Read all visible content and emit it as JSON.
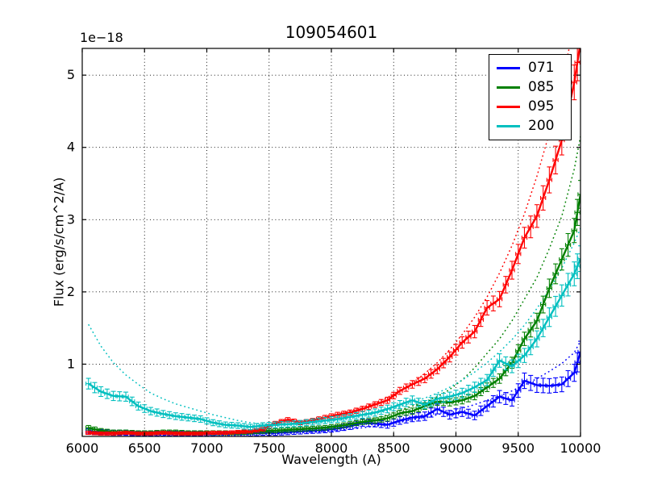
{
  "figure": {
    "title": "109054601",
    "offset_text": "1e−18"
  },
  "axes": {
    "xlabel": "Wavelength (A)",
    "ylabel": "Flux (erg/s/cm^2/A)"
  },
  "legend": {
    "position": "upper right",
    "items": [
      {
        "label": "071",
        "color": "#0000ff"
      },
      {
        "label": "085",
        "color": "#008000"
      },
      {
        "label": "095",
        "color": "#ff0000"
      },
      {
        "label": "200",
        "color": "#00bfbf"
      }
    ]
  },
  "chart_data": {
    "type": "line",
    "title": "109054601",
    "xlabel": "Wavelength (A)",
    "ylabel": "Flux (erg/s/cm^2/A)",
    "y_scale_factor": "1e-18",
    "xlim": [
      6000,
      10000
    ],
    "ylim": [
      0,
      5.37
    ],
    "xticks": [
      "6000",
      "6500",
      "7000",
      "7500",
      "8000",
      "8500",
      "9000",
      "9500",
      "10000"
    ],
    "yticks": [
      "1",
      "2",
      "3",
      "4",
      "5"
    ],
    "grid": true,
    "grid_style": "dotted",
    "legend_position": "upper right",
    "x": [
      6050,
      6150,
      6250,
      6350,
      6450,
      6550,
      6650,
      6750,
      6850,
      6950,
      7050,
      7150,
      7250,
      7350,
      7450,
      7550,
      7650,
      7750,
      7850,
      7950,
      8050,
      8150,
      8250,
      8350,
      8450,
      8550,
      8650,
      8750,
      8850,
      8950,
      9050,
      9150,
      9250,
      9350,
      9450,
      9550,
      9650,
      9750,
      9850,
      9950,
      10000
    ],
    "series": [
      {
        "name": "071",
        "color": "#0000ff",
        "style": "solid",
        "errorbars": true,
        "yerr_base": 0.03,
        "yerr_frac": 0.1,
        "xerr": 20,
        "y": [
          0.07,
          0.06,
          0.05,
          0.05,
          0.04,
          0.04,
          0.04,
          0.04,
          0.04,
          0.04,
          0.04,
          0.03,
          0.03,
          0.04,
          0.05,
          0.05,
          0.06,
          0.07,
          0.08,
          0.09,
          0.11,
          0.14,
          0.19,
          0.18,
          0.16,
          0.22,
          0.26,
          0.28,
          0.38,
          0.3,
          0.34,
          0.29,
          0.42,
          0.55,
          0.5,
          0.77,
          0.71,
          0.7,
          0.72,
          0.88,
          1.17
        ]
      },
      {
        "name": "085",
        "color": "#008000",
        "style": "solid",
        "errorbars": true,
        "yerr_base": 0.025,
        "yerr_frac": 0.05,
        "xerr": 20,
        "y": [
          0.12,
          0.08,
          0.06,
          0.06,
          0.05,
          0.05,
          0.06,
          0.06,
          0.05,
          0.05,
          0.05,
          0.05,
          0.05,
          0.06,
          0.07,
          0.08,
          0.09,
          0.1,
          0.11,
          0.12,
          0.14,
          0.17,
          0.2,
          0.22,
          0.25,
          0.32,
          0.35,
          0.42,
          0.48,
          0.47,
          0.5,
          0.56,
          0.68,
          0.8,
          1.02,
          1.35,
          1.6,
          2.05,
          2.45,
          2.85,
          3.35
        ]
      },
      {
        "name": "095",
        "color": "#ff0000",
        "style": "solid",
        "errorbars": true,
        "yerr_base": 0.02,
        "yerr_frac": 0.045,
        "xerr": 20,
        "y": [
          0.05,
          0.04,
          0.04,
          0.05,
          0.04,
          0.04,
          0.05,
          0.04,
          0.04,
          0.04,
          0.05,
          0.05,
          0.06,
          0.07,
          0.1,
          0.18,
          0.23,
          0.19,
          0.22,
          0.26,
          0.3,
          0.33,
          0.38,
          0.44,
          0.5,
          0.63,
          0.72,
          0.8,
          0.93,
          1.1,
          1.3,
          1.45,
          1.78,
          1.9,
          2.3,
          2.75,
          3.05,
          3.55,
          4.1,
          4.9,
          5.45
        ]
      },
      {
        "name": "200",
        "color": "#00bfbf",
        "style": "solid",
        "errorbars": true,
        "yerr_base": 0.03,
        "yerr_frac": 0.06,
        "xerr": 20,
        "y": [
          0.73,
          0.62,
          0.56,
          0.55,
          0.42,
          0.35,
          0.31,
          0.28,
          0.26,
          0.24,
          0.19,
          0.16,
          0.15,
          0.13,
          0.15,
          0.16,
          0.17,
          0.18,
          0.2,
          0.22,
          0.24,
          0.27,
          0.3,
          0.33,
          0.38,
          0.44,
          0.5,
          0.44,
          0.52,
          0.55,
          0.6,
          0.68,
          0.78,
          1.05,
          0.97,
          1.12,
          1.35,
          1.65,
          1.95,
          2.25,
          2.46
        ]
      },
      {
        "name": "071 model",
        "color": "#0000ff",
        "style": "dotted",
        "errorbars": false,
        "y": [
          0.03,
          0.03,
          0.03,
          0.03,
          0.02,
          0.02,
          0.02,
          0.02,
          0.02,
          0.02,
          0.02,
          0.02,
          0.03,
          0.03,
          0.04,
          0.04,
          0.05,
          0.06,
          0.06,
          0.07,
          0.08,
          0.1,
          0.12,
          0.14,
          0.17,
          0.2,
          0.23,
          0.26,
          0.3,
          0.34,
          0.39,
          0.44,
          0.5,
          0.56,
          0.63,
          0.71,
          0.8,
          0.9,
          1.01,
          1.16,
          1.32
        ]
      },
      {
        "name": "085 model",
        "color": "#008000",
        "style": "dotted",
        "errorbars": false,
        "y": [
          0.1,
          0.08,
          0.07,
          0.06,
          0.05,
          0.05,
          0.04,
          0.04,
          0.04,
          0.04,
          0.04,
          0.04,
          0.05,
          0.05,
          0.06,
          0.07,
          0.08,
          0.1,
          0.11,
          0.13,
          0.15,
          0.18,
          0.21,
          0.25,
          0.3,
          0.36,
          0.42,
          0.48,
          0.55,
          0.65,
          0.78,
          0.95,
          1.15,
          1.35,
          1.6,
          1.9,
          2.2,
          2.6,
          3.05,
          3.7,
          4.15
        ]
      },
      {
        "name": "095 model",
        "color": "#ff0000",
        "style": "dotted",
        "errorbars": false,
        "y": [
          0.04,
          0.04,
          0.04,
          0.04,
          0.04,
          0.04,
          0.04,
          0.04,
          0.04,
          0.04,
          0.05,
          0.05,
          0.06,
          0.08,
          0.12,
          0.2,
          0.24,
          0.21,
          0.23,
          0.27,
          0.31,
          0.35,
          0.4,
          0.46,
          0.54,
          0.63,
          0.74,
          0.87,
          1.02,
          1.2,
          1.41,
          1.65,
          1.93,
          2.26,
          2.64,
          3.08,
          3.6,
          4.2,
          4.9,
          5.7,
          6.1
        ]
      },
      {
        "name": "200 model",
        "color": "#00bfbf",
        "style": "dotted",
        "errorbars": false,
        "y": [
          1.55,
          1.25,
          1.02,
          0.85,
          0.72,
          0.6,
          0.52,
          0.45,
          0.4,
          0.35,
          0.3,
          0.26,
          0.22,
          0.19,
          0.17,
          0.16,
          0.16,
          0.17,
          0.18,
          0.2,
          0.22,
          0.25,
          0.28,
          0.32,
          0.36,
          0.41,
          0.47,
          0.53,
          0.6,
          0.68,
          0.78,
          0.89,
          1.02,
          1.17,
          1.34,
          1.54,
          1.77,
          2.03,
          2.33,
          2.68,
          2.88
        ]
      }
    ]
  }
}
